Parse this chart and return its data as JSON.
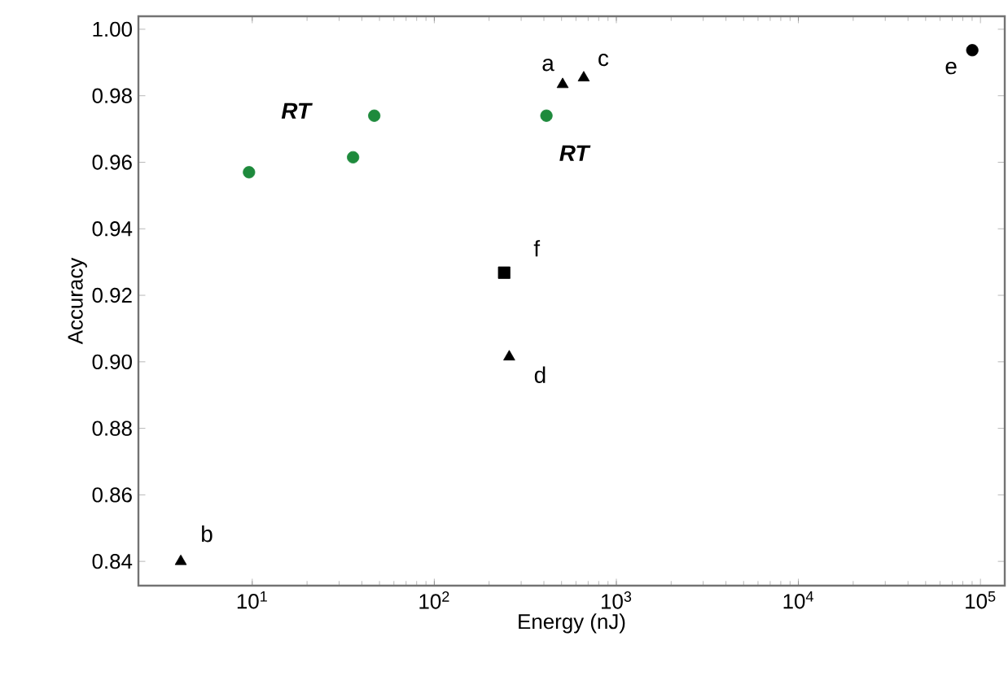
{
  "chart_data": {
    "type": "scatter",
    "xlabel": "Energy (nJ)",
    "ylabel": "Accuracy",
    "log": "x",
    "xlim": [
      2.37,
      136000
    ],
    "ylim": [
      0.8327,
      1.0039
    ],
    "xticks": [
      {
        "value": 10,
        "label": "10$^{1}$"
      },
      {
        "value": 100,
        "label": "10$^{2}$"
      },
      {
        "value": 1000,
        "label": "10$^{3}$"
      },
      {
        "value": 10000,
        "label": "10$^{4}$"
      },
      {
        "value": 100000,
        "label": "10$^{5}$"
      }
    ],
    "yticks": [
      {
        "value": 0.84,
        "label": "0.84"
      },
      {
        "value": 0.86,
        "label": "0.86"
      },
      {
        "value": 0.88,
        "label": "0.88"
      },
      {
        "value": 0.9,
        "label": "0.90"
      },
      {
        "value": 0.92,
        "label": "0.92"
      },
      {
        "value": 0.94,
        "label": "0.94"
      },
      {
        "value": 0.96,
        "label": "0.96"
      },
      {
        "value": 0.98,
        "label": "0.98"
      },
      {
        "value": 1.0,
        "label": "1.00"
      }
    ],
    "grid": false,
    "series": [
      {
        "color": "#1e8a3c",
        "marker": "circle",
        "x": [
          9.6,
          35.8,
          46.8,
          413
        ],
        "values": [
          0.957,
          0.9615,
          0.974,
          0.974
        ]
      },
      {
        "color": "#000000",
        "marker": "triangle",
        "x": [
          507,
          662,
          258,
          4.05
        ],
        "values": [
          0.9834,
          0.9854,
          0.9015,
          0.84
        ]
      },
      {
        "color": "#000000",
        "marker": "circle",
        "x": [
          90200
        ],
        "values": [
          0.9937
        ]
      },
      {
        "color": "#000000",
        "marker": "square",
        "x": [
          242
        ],
        "values": [
          0.9268
        ]
      }
    ],
    "annotations": [
      {
        "text": "a",
        "x": 507,
        "y": 0.9834
      },
      {
        "text": "b",
        "x": 4.05,
        "y": 0.84
      },
      {
        "text": "c",
        "x": 662,
        "y": 0.9854
      },
      {
        "text": "d",
        "x": 258,
        "y": 0.9015
      },
      {
        "text": "e",
        "x": 90200,
        "y": 0.9937
      },
      {
        "text": "f",
        "x": 242,
        "y": 0.9268
      },
      {
        "text": "RT",
        "x": 46.8,
        "y": 0.974
      },
      {
        "text": "RT",
        "x": 413,
        "y": 0.974
      }
    ]
  }
}
